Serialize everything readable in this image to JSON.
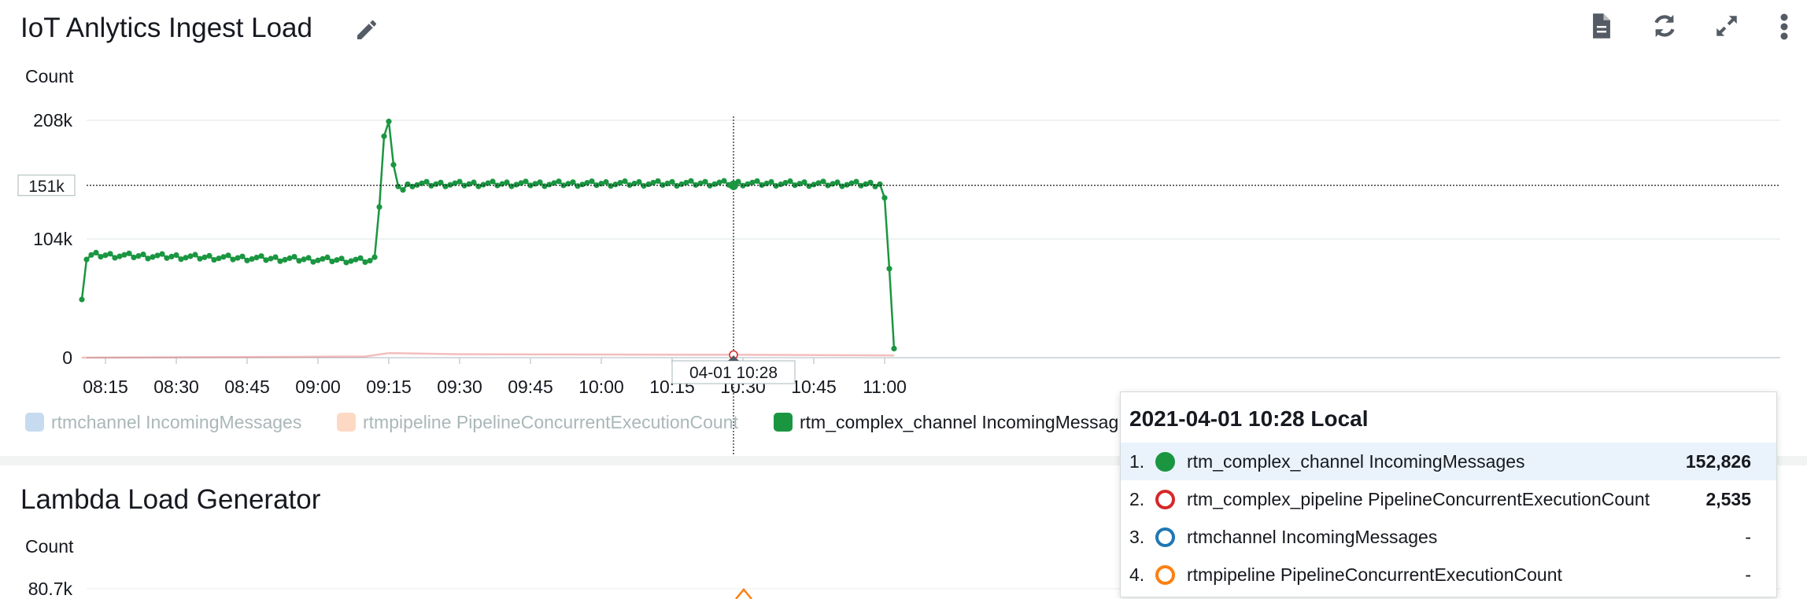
{
  "panel1": {
    "title": "IoT Anlytics Ingest Load",
    "icons": [
      "pencil-icon",
      "document-icon",
      "refresh-icon",
      "expand-icon",
      "more-vertical-icon"
    ]
  },
  "panel2": {
    "title": "Lambda Load Generator",
    "unit_label": "Count",
    "y_tick_label": "80.7k",
    "series_color": "#ff7f0e"
  },
  "chart_data": {
    "type": "line",
    "ylabel": "Count",
    "ylim": [
      0,
      208000
    ],
    "y_ticks": [
      {
        "value": 0,
        "label": "0"
      },
      {
        "value": 104000,
        "label": "104k"
      },
      {
        "value": 208000,
        "label": "208k"
      }
    ],
    "x_ticks": [
      "08:15",
      "08:30",
      "08:45",
      "09:00",
      "09:15",
      "09:30",
      "09:45",
      "10:00",
      "10:15",
      "10:30",
      "10:45",
      "11:00"
    ],
    "x_range": [
      "08:06",
      "11:04"
    ],
    "grid": true,
    "legend_position": "bottom",
    "crosshair": {
      "x": "10:28",
      "x_label": "04-01 10:28",
      "y": 151000,
      "y_label": "151k"
    },
    "series": [
      {
        "name": "rtmchannel IncomingMessages",
        "color": "#1f77b4",
        "hidden": true
      },
      {
        "name": "rtmpipeline PipelineConcurrentExecutionCount",
        "color": "#ff7f0e",
        "hidden": true
      },
      {
        "name": "rtm_complex_channel IncomingMessages",
        "color": "#2ca02c",
        "hidden": false,
        "points": [
          [
            "08:10",
            51000
          ],
          [
            "08:11",
            86000
          ],
          [
            "08:12",
            90000
          ],
          [
            "09:11",
            85000
          ],
          [
            "09:12",
            88000
          ],
          [
            "09:13",
            132000
          ],
          [
            "09:14",
            194000
          ],
          [
            "09:15",
            207000
          ],
          [
            "09:16",
            169000
          ],
          [
            "09:17",
            150000
          ],
          [
            "09:18",
            147000
          ],
          [
            "09:19",
            152000
          ],
          [
            "10:28",
            152826
          ],
          [
            "10:59",
            152000
          ],
          [
            "11:00",
            140000
          ],
          [
            "11:01",
            78000
          ],
          [
            "11:02",
            8000
          ]
        ]
      },
      {
        "name": "rtm_complex_pipeline PipelineConcurrentExecutionCount",
        "color": "#d62728",
        "hidden": false,
        "points": [
          [
            "08:10",
            0
          ],
          [
            "09:10",
            1000
          ],
          [
            "09:15",
            4000
          ],
          [
            "09:30",
            3000
          ],
          [
            "10:28",
            2535
          ],
          [
            "11:02",
            2000
          ]
        ]
      }
    ]
  },
  "legend": [
    {
      "label": "rtmchannel IncomingMessages",
      "color": "#c6dbef",
      "active": false
    },
    {
      "label": "rtmpipeline PipelineConcurrentExecutionCount",
      "color": "#fdd9c4",
      "active": false
    },
    {
      "label": "rtm_complex_channel IncomingMessag",
      "color": "#1a9641",
      "active": true
    }
  ],
  "tooltip": {
    "title": "2021-04-01 10:28 Local",
    "rows": [
      {
        "num": "1.",
        "name": "rtm_complex_channel IncomingMessages",
        "value": "152,826",
        "color": "#1a9641",
        "filled": true
      },
      {
        "num": "2.",
        "name": "rtm_complex_pipeline PipelineConcurrentExecutionCount",
        "value": "2,535",
        "color": "#d62728",
        "filled": false
      },
      {
        "num": "3.",
        "name": "rtmchannel IncomingMessages",
        "value": "-",
        "color": "#1f77b4",
        "filled": false
      },
      {
        "num": "4.",
        "name": "rtmpipeline PipelineConcurrentExecutionCount",
        "value": "-",
        "color": "#ff7f0e",
        "filled": false
      }
    ]
  }
}
